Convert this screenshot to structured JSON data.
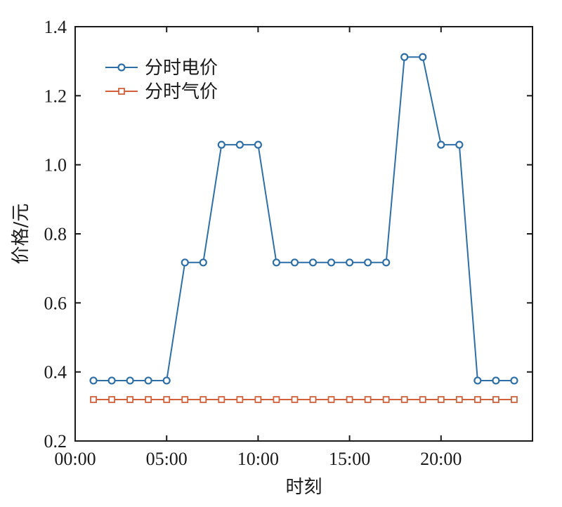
{
  "chart_data": {
    "type": "line",
    "title": "",
    "xlabel": "时刻",
    "ylabel": "价格/元",
    "xlim": [
      0,
      25
    ],
    "ylim": [
      0.2,
      1.4
    ],
    "xticks": [
      0,
      5,
      10,
      15,
      20
    ],
    "xtick_labels": [
      "00:00",
      "05:00",
      "10:00",
      "15:00",
      "20:00"
    ],
    "yticks": [
      0.2,
      0.4,
      0.6,
      0.8,
      1.0,
      1.2,
      1.4
    ],
    "ytick_labels": [
      "0.2",
      "0.4",
      "0.6",
      "0.8",
      "1.0",
      "1.2",
      "1.4"
    ],
    "grid": false,
    "legend_position": "top-left",
    "x": [
      1,
      2,
      3,
      4,
      5,
      6,
      7,
      8,
      9,
      10,
      11,
      12,
      13,
      14,
      15,
      16,
      17,
      18,
      19,
      20,
      21,
      22,
      23,
      24
    ],
    "series": [
      {
        "name": "分时电价",
        "color": "#2e6fa8",
        "marker": "circle",
        "values": [
          0.375,
          0.375,
          0.375,
          0.375,
          0.375,
          0.717,
          0.717,
          1.058,
          1.058,
          1.058,
          0.717,
          0.717,
          0.717,
          0.717,
          0.717,
          0.717,
          0.717,
          1.312,
          1.312,
          1.058,
          1.058,
          0.375,
          0.375,
          0.375
        ]
      },
      {
        "name": "分时气价",
        "color": "#d2603a",
        "marker": "square",
        "values": [
          0.32,
          0.32,
          0.32,
          0.32,
          0.32,
          0.32,
          0.32,
          0.32,
          0.32,
          0.32,
          0.32,
          0.32,
          0.32,
          0.32,
          0.32,
          0.32,
          0.32,
          0.32,
          0.32,
          0.32,
          0.32,
          0.32,
          0.32,
          0.32
        ]
      }
    ]
  }
}
